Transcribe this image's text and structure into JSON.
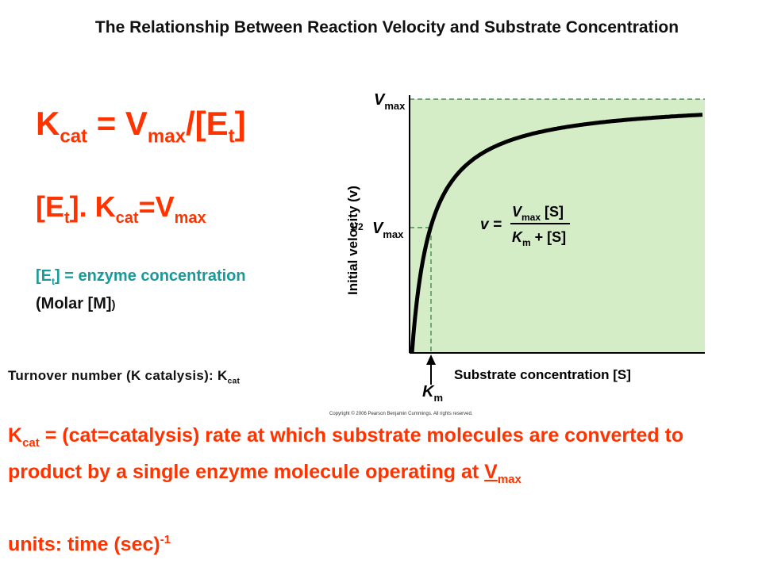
{
  "title": "The Relationship Between Reaction Velocity and Substrate Concentration",
  "colors": {
    "accent": "#ff3300",
    "teal": "#1a9999",
    "plot_fill": "#d5edc7",
    "curve": "#000000"
  },
  "eq1": {
    "k": "K",
    "k_sub": "cat",
    "eq": " = V",
    "v_sub": "max",
    "div": "/[E",
    "e_sub": "t",
    "close": "]"
  },
  "eq2": {
    "open": "[E",
    "e_sub": "t",
    "mid": "]. K",
    "k_sub": "cat",
    "eq": "=V",
    "v_sub": "max"
  },
  "et_def": {
    "open": "[E",
    "sub": "t",
    "rest": "] = enzyme concentration",
    "line2_a": "(Molar [M]",
    "line2_b": ")"
  },
  "turnover": {
    "text": "Turnover number (K catalysis): K",
    "sub": "cat"
  },
  "kcat_def": {
    "k": "K",
    "k_sub": "cat",
    "text": " = (cat=catalysis) rate at which substrate molecules are converted to product by a single enzyme molecule operating at ",
    "v": "V",
    "v_sub": "max"
  },
  "units": {
    "text": "units: time (sec)",
    "sup": "-1"
  },
  "diagram": {
    "y_axis_label": "Initial velocity (v)",
    "x_axis_label": "Substrate concentration [S]",
    "vmax_label": "V",
    "vmax_sub": "max",
    "half_label": "1/2",
    "half_v": "V",
    "half_sub": "max",
    "km_label": "K",
    "km_sub": "m",
    "eq_lhs": "v =",
    "eq_num_v": "V",
    "eq_num_sub": "max",
    "eq_num_s": " [S]",
    "eq_den_k": "K",
    "eq_den_sub": "m",
    "eq_den_s": " + [S]",
    "copyright": "Copyright © 2006 Pearson Benjamin Cummings. All rights reserved."
  }
}
